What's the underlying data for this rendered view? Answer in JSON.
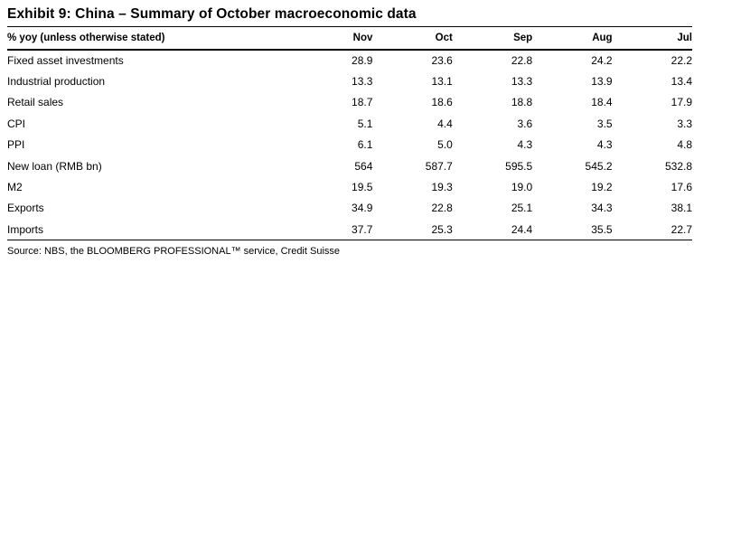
{
  "title": "Exhibit 9: China – Summary of October macroeconomic data",
  "source": "Source: NBS, the BLOOMBERG PROFESSIONAL™ service, Credit Suisse",
  "table": {
    "header": [
      "% yoy (unless otherwise stated)",
      "Nov",
      "Oct",
      "Sep",
      "Aug",
      "Jul"
    ],
    "rows": [
      {
        "label": "Fixed asset investments",
        "values": [
          "28.9",
          "23.6",
          "22.8",
          "24.2",
          "22.2"
        ]
      },
      {
        "label": "Industrial production",
        "values": [
          "13.3",
          "13.1",
          "13.3",
          "13.9",
          "13.4"
        ]
      },
      {
        "label": "Retail sales",
        "values": [
          "18.7",
          "18.6",
          "18.8",
          "18.4",
          "17.9"
        ]
      },
      {
        "label": "CPI",
        "values": [
          "5.1",
          "4.4",
          "3.6",
          "3.5",
          "3.3"
        ]
      },
      {
        "label": "PPI",
        "values": [
          "6.1",
          "5.0",
          "4.3",
          "4.3",
          "4.8"
        ]
      },
      {
        "label": "New loan (RMB bn)",
        "values": [
          "564",
          "587.7",
          "595.5",
          "545.2",
          "532.8"
        ]
      },
      {
        "label": "M2",
        "values": [
          "19.5",
          "19.3",
          "19.0",
          "19.2",
          "17.6"
        ]
      },
      {
        "label": "Exports",
        "values": [
          "34.9",
          "22.8",
          "25.1",
          "34.3",
          "38.1"
        ]
      },
      {
        "label": "Imports",
        "values": [
          "37.7",
          "25.3",
          "24.4",
          "35.5",
          "22.7"
        ]
      }
    ]
  },
  "chart_data": {
    "type": "table",
    "title": "Exhibit 9: China – Summary of October macroeconomic data",
    "unit_note": "% yoy (unless otherwise stated)",
    "columns": [
      "Nov",
      "Oct",
      "Sep",
      "Aug",
      "Jul"
    ],
    "series": [
      {
        "name": "Fixed asset investments",
        "values": [
          28.9,
          23.6,
          22.8,
          24.2,
          22.2
        ]
      },
      {
        "name": "Industrial production",
        "values": [
          13.3,
          13.1,
          13.3,
          13.9,
          13.4
        ]
      },
      {
        "name": "Retail sales",
        "values": [
          18.7,
          18.6,
          18.8,
          18.4,
          17.9
        ]
      },
      {
        "name": "CPI",
        "values": [
          5.1,
          4.4,
          3.6,
          3.5,
          3.3
        ]
      },
      {
        "name": "PPI",
        "values": [
          6.1,
          5.0,
          4.3,
          4.3,
          4.8
        ]
      },
      {
        "name": "New loan (RMB bn)",
        "values": [
          564,
          587.7,
          595.5,
          545.2,
          532.8
        ]
      },
      {
        "name": "M2",
        "values": [
          19.5,
          19.3,
          19.0,
          19.2,
          17.6
        ]
      },
      {
        "name": "Exports",
        "values": [
          34.9,
          22.8,
          25.1,
          34.3,
          38.1
        ]
      },
      {
        "name": "Imports",
        "values": [
          37.7,
          25.3,
          24.4,
          35.5,
          22.7
        ]
      }
    ],
    "source": "Source: NBS, the BLOOMBERG PROFESSIONAL™ service, Credit Suisse",
    "text_color": "#000000",
    "background_color": "#ffffff"
  }
}
